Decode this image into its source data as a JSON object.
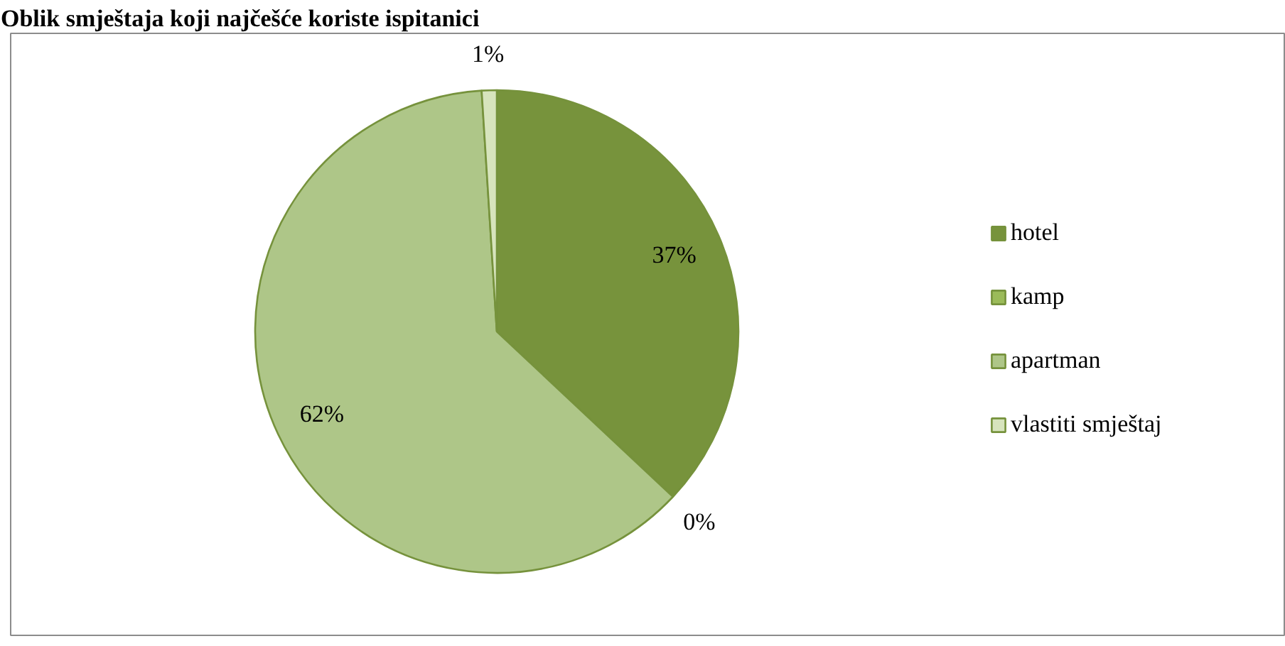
{
  "chart_data": {
    "type": "pie",
    "title": "Oblik smještaja koji najčešće koriste ispitanici",
    "categories": [
      "hotel",
      "kamp",
      "apartman",
      "vlastiti smještaj"
    ],
    "values": [
      37,
      0,
      62,
      1
    ],
    "colors": [
      "#77933c",
      "#9bbb59",
      "#aec688",
      "#d7e4bd"
    ],
    "value_labels": [
      "37%",
      "0%",
      "62%",
      "1%"
    ],
    "legend": "right"
  }
}
